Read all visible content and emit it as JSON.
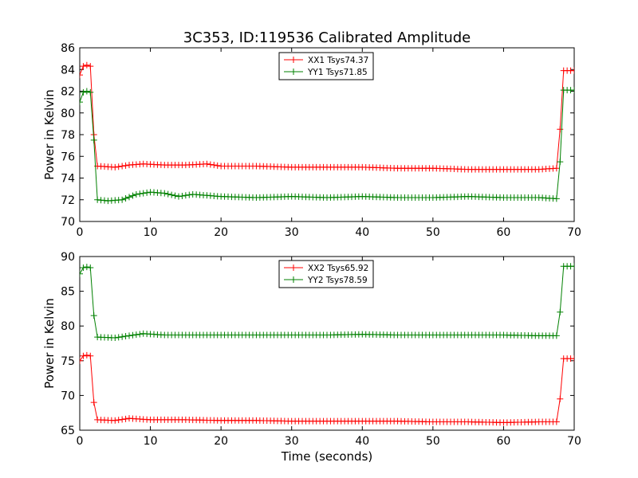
{
  "figure": {
    "title": "3C353, ID:119536 Calibrated Amplitude",
    "xlabel": "Time (seconds)"
  },
  "colors": {
    "red": "#ff0000",
    "green": "#008000"
  },
  "chart_data": [
    {
      "type": "line",
      "title": "3C353, ID:119536 Calibrated Amplitude",
      "xlabel": "",
      "ylabel": "Power in Kelvin",
      "xlim": [
        0,
        70
      ],
      "ylim": [
        70,
        86
      ],
      "xticks": [
        0,
        10,
        20,
        30,
        40,
        50,
        60,
        70
      ],
      "yticks": [
        70,
        72,
        74,
        76,
        78,
        80,
        82,
        84,
        86
      ],
      "grid": false,
      "legend": "top-center",
      "marker": "+",
      "series": [
        {
          "name": "XX1 Tsys74.37",
          "color": "#ff0000",
          "x": [
            0,
            0.5,
            1,
            1.5,
            2,
            2.5,
            5,
            7,
            9,
            12,
            15,
            18,
            20,
            25,
            30,
            35,
            40,
            45,
            50,
            55,
            60,
            65,
            67.5,
            68,
            68.5,
            70
          ],
          "y": [
            83.5,
            84.3,
            84.4,
            84.3,
            78,
            75.1,
            75,
            75.2,
            75.3,
            75.2,
            75.2,
            75.3,
            75.1,
            75.1,
            75,
            75,
            75,
            74.9,
            74.9,
            74.8,
            74.8,
            74.8,
            74.9,
            78.5,
            83.9,
            83.9
          ]
        },
        {
          "name": "YY1 Tsys71.85",
          "color": "#008000",
          "x": [
            0,
            0.5,
            1,
            1.5,
            2,
            2.5,
            4,
            6,
            8,
            10,
            12,
            14,
            16,
            18,
            20,
            25,
            30,
            35,
            40,
            45,
            50,
            55,
            60,
            65,
            67.5,
            68,
            68.5,
            70
          ],
          "y": [
            81,
            81.9,
            82,
            81.9,
            77.5,
            72,
            71.9,
            72,
            72.5,
            72.7,
            72.6,
            72.3,
            72.5,
            72.4,
            72.3,
            72.2,
            72.3,
            72.2,
            72.3,
            72.2,
            72.2,
            72.3,
            72.2,
            72.2,
            72.1,
            75.5,
            82.1,
            82.1
          ]
        }
      ]
    },
    {
      "type": "line",
      "title": "",
      "xlabel": "Time (seconds)",
      "ylabel": "Power in Kelvin",
      "xlim": [
        0,
        70
      ],
      "ylim": [
        65,
        90
      ],
      "xticks": [
        0,
        10,
        20,
        30,
        40,
        50,
        60,
        70
      ],
      "yticks": [
        65,
        70,
        75,
        80,
        85,
        90
      ],
      "grid": false,
      "legend": "top-center",
      "marker": "+",
      "series": [
        {
          "name": "XX2 Tsys65.92",
          "color": "#ff0000",
          "x": [
            0,
            0.5,
            1,
            1.5,
            2,
            2.5,
            5,
            7,
            10,
            15,
            20,
            25,
            30,
            35,
            40,
            45,
            50,
            55,
            60,
            65,
            67.5,
            68,
            68.5,
            70
          ],
          "y": [
            75,
            75.7,
            75.8,
            75.7,
            69,
            66.5,
            66.4,
            66.7,
            66.5,
            66.5,
            66.4,
            66.4,
            66.3,
            66.3,
            66.3,
            66.3,
            66.2,
            66.2,
            66.1,
            66.2,
            66.2,
            69.5,
            75.3,
            75.3
          ]
        },
        {
          "name": "YY2 Tsys78.59",
          "color": "#008000",
          "x": [
            0,
            0.5,
            1,
            1.5,
            2,
            2.5,
            5,
            7,
            9,
            12,
            15,
            20,
            25,
            30,
            35,
            40,
            45,
            50,
            55,
            60,
            65,
            67.5,
            68,
            68.5,
            70
          ],
          "y": [
            87.5,
            88.4,
            88.5,
            88.4,
            81.5,
            78.4,
            78.3,
            78.6,
            78.9,
            78.7,
            78.7,
            78.7,
            78.7,
            78.7,
            78.7,
            78.8,
            78.7,
            78.7,
            78.7,
            78.7,
            78.6,
            78.6,
            82,
            88.6,
            88.6
          ]
        }
      ]
    }
  ]
}
